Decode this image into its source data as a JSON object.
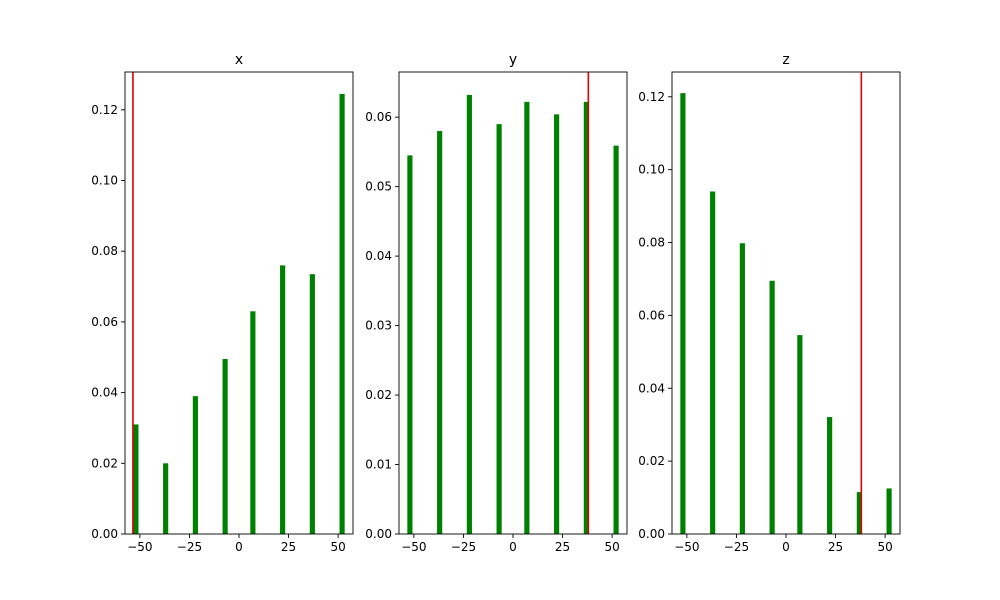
{
  "colors": {
    "bar": "#008000",
    "marker": "#e00000",
    "axis": "#000000",
    "background": "#ffffff"
  },
  "chart_data": [
    {
      "type": "bar",
      "title": "x",
      "x": [
        -52,
        -37,
        -22,
        -7,
        7,
        22,
        37,
        52
      ],
      "values": [
        0.031,
        0.02,
        0.039,
        0.0495,
        0.063,
        0.076,
        0.0735,
        0.1245
      ],
      "marker_line_x": -53.5,
      "xlim": [
        -57.5,
        57.5
      ],
      "ylim": [
        0,
        0.1307
      ],
      "xticks": [
        -50,
        -25,
        0,
        25,
        50
      ],
      "xtick_labels": [
        "−50",
        "−25",
        "0",
        "25",
        "50"
      ],
      "yticks": [
        0,
        0.02,
        0.04,
        0.06,
        0.08,
        0.1,
        0.12
      ],
      "ytick_labels": [
        "0.00",
        "0.02",
        "0.04",
        "0.06",
        "0.08",
        "0.10",
        "0.12"
      ],
      "grid": false
    },
    {
      "type": "bar",
      "title": "y",
      "x": [
        -52,
        -37,
        -22,
        -7,
        7,
        22,
        37,
        52
      ],
      "values": [
        0.0545,
        0.058,
        0.0632,
        0.059,
        0.0622,
        0.0604,
        0.0622,
        0.0559
      ],
      "marker_line_x": 38,
      "xlim": [
        -57.5,
        57.5
      ],
      "ylim": [
        0,
        0.0665
      ],
      "xticks": [
        -50,
        -25,
        0,
        25,
        50
      ],
      "xtick_labels": [
        "−50",
        "−25",
        "0",
        "25",
        "50"
      ],
      "yticks": [
        0,
        0.01,
        0.02,
        0.03,
        0.04,
        0.05,
        0.06
      ],
      "ytick_labels": [
        "0.00",
        "0.01",
        "0.02",
        "0.03",
        "0.04",
        "0.05",
        "0.06"
      ],
      "grid": false
    },
    {
      "type": "bar",
      "title": "z",
      "x": [
        -52,
        -37,
        -22,
        -7,
        7,
        22,
        37,
        52
      ],
      "values": [
        0.121,
        0.094,
        0.0798,
        0.0695,
        0.0546,
        0.0321,
        0.0115,
        0.0125
      ],
      "marker_line_x": 38,
      "xlim": [
        -57.5,
        57.5
      ],
      "ylim": [
        0,
        0.1268
      ],
      "xticks": [
        -50,
        -25,
        0,
        25,
        50
      ],
      "xtick_labels": [
        "−50",
        "−25",
        "0",
        "25",
        "50"
      ],
      "yticks": [
        0,
        0.02,
        0.04,
        0.06,
        0.08,
        0.1,
        0.12
      ],
      "ytick_labels": [
        "0.00",
        "0.02",
        "0.04",
        "0.06",
        "0.08",
        "0.10",
        "0.12"
      ],
      "grid": false
    }
  ]
}
